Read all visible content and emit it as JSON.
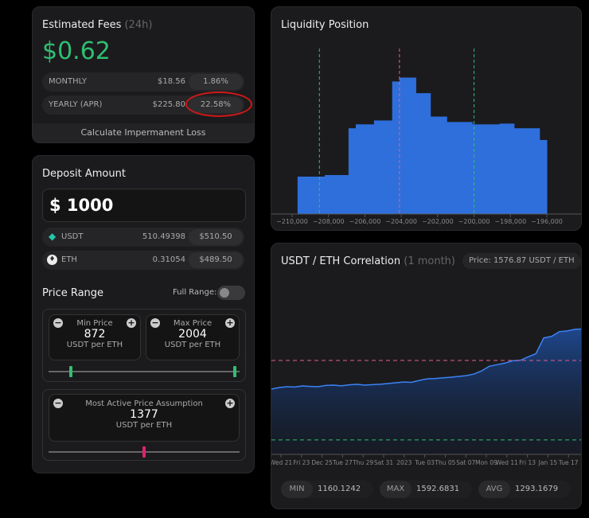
{
  "fees": {
    "title": "Estimated Fees",
    "period": "(24h)",
    "amount": "$0.62",
    "monthly": {
      "label": "MONTHLY",
      "value": "$18.56",
      "pct": "1.86%"
    },
    "yearly": {
      "label": "YEARLY (APR)",
      "value": "$225.80",
      "pct": "22.58%"
    },
    "il_button": "Calculate Impermanent Loss",
    "accent": "#2fbf71",
    "highlight_color": "#d01818"
  },
  "deposit": {
    "title": "Deposit Amount",
    "amount": "$ 1000",
    "tokens": [
      {
        "symbol": "USDT",
        "amount": "510.49398",
        "usd": "$510.50",
        "icon": "tether-icon"
      },
      {
        "symbol": "ETH",
        "amount": "0.31054",
        "usd": "$489.50",
        "icon": "ethereum-icon"
      }
    ]
  },
  "range": {
    "title": "Price Range",
    "full_range_label": "Full Range:",
    "full_range_on": false,
    "min": {
      "label": "Min Price",
      "value": "872",
      "unit": "USDT per ETH"
    },
    "max": {
      "label": "Max Price",
      "value": "2004",
      "unit": "USDT per ETH"
    },
    "active": {
      "label": "Most Active Price Assumption",
      "value": "1377",
      "unit": "USDT per ETH"
    }
  },
  "liquidity": {
    "title": "Liquidity Position",
    "chart_data": {
      "type": "bar",
      "x_ticks": [
        "-210,000",
        "-208,000",
        "-206,000",
        "-204,000",
        "-202,000",
        "-200,000",
        "-198,000",
        "-196,000"
      ],
      "xlim": [
        -211000,
        -195000
      ],
      "min_tick": -208500,
      "max_tick": -200000,
      "current_tick": -204100,
      "bars": [
        [
          -209700,
          -208200,
          48
        ],
        [
          -208200,
          -206900,
          50
        ],
        [
          -206900,
          -206500,
          110
        ],
        [
          -206500,
          -205500,
          115
        ],
        [
          -205500,
          -204500,
          120
        ],
        [
          -204500,
          -204100,
          170
        ],
        [
          -204100,
          -203200,
          175
        ],
        [
          -203200,
          -202400,
          155
        ],
        [
          -202400,
          -201500,
          125
        ],
        [
          -201500,
          -200100,
          118
        ],
        [
          -200100,
          -198600,
          115
        ],
        [
          -198600,
          -197800,
          116
        ],
        [
          -197800,
          -196400,
          110
        ],
        [
          -196400,
          -196000,
          95
        ]
      ]
    }
  },
  "correlation": {
    "title": "USDT / ETH Correlation",
    "period": "(1 month)",
    "price": "Price: 1576.87 USDT / ETH",
    "chart_data": {
      "type": "area",
      "x_ticks": [
        "Wed 21",
        "Fri 23",
        "Dec 25",
        "Tue 27",
        "Thu 29",
        "Sat 31",
        "2023",
        "Tue 03",
        "Thu 05",
        "Sat 07",
        "Mon 09",
        "Wed 11",
        "Fri 13",
        "Jan 15",
        "Tue 17"
      ],
      "ylim": [
        780,
        1640
      ],
      "values": [
        1195,
        1205,
        1210,
        1208,
        1215,
        1212,
        1210,
        1218,
        1220,
        1216,
        1222,
        1225,
        1220,
        1223,
        1226,
        1230,
        1235,
        1240,
        1238,
        1250,
        1260,
        1262,
        1266,
        1270,
        1275,
        1280,
        1290,
        1310,
        1340,
        1350,
        1360,
        1375,
        1378,
        1400,
        1420,
        1520,
        1530,
        1560,
        1565,
        1575,
        1577
      ],
      "min_line": 872,
      "active_line": 1377
    },
    "stats": [
      {
        "label": "MIN",
        "value": "1160.1242"
      },
      {
        "label": "MAX",
        "value": "1592.6831"
      },
      {
        "label": "AVG",
        "value": "1293.1679"
      }
    ]
  }
}
